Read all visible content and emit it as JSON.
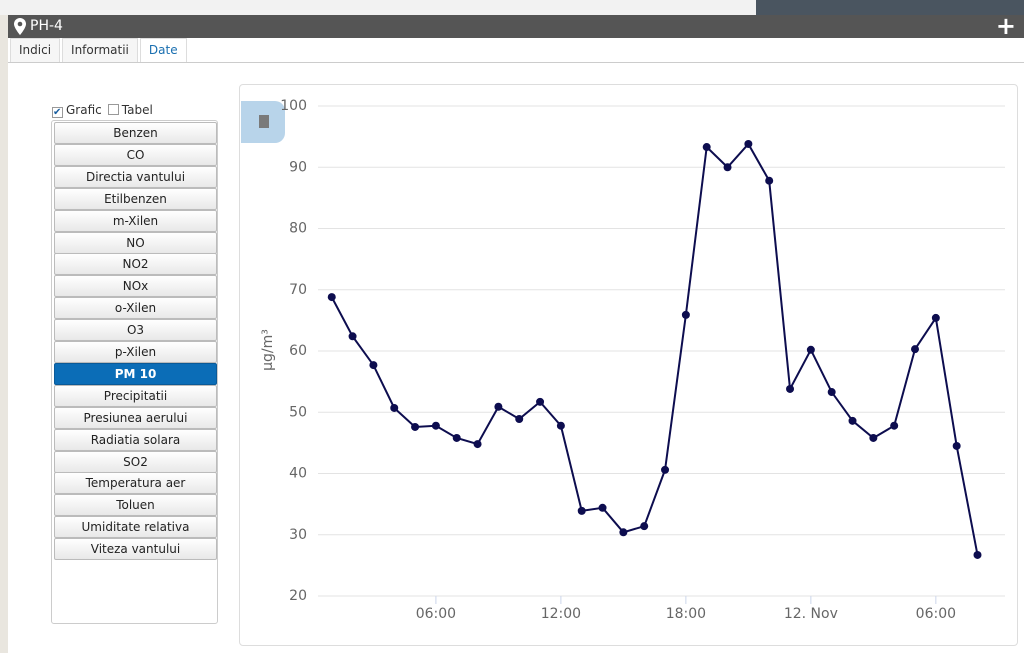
{
  "window": {
    "title": "PH-4"
  },
  "tabs": [
    {
      "label": "Indici"
    },
    {
      "label": "Informatii"
    },
    {
      "label": "Date",
      "active": true
    }
  ],
  "view_options": [
    {
      "label": "Grafic",
      "checked": true
    },
    {
      "label": "Tabel",
      "checked": false
    }
  ],
  "buttons": [
    {
      "label": "Benzen"
    },
    {
      "label": "CO"
    },
    {
      "label": "Directia vantului"
    },
    {
      "label": "Etilbenzen"
    },
    {
      "label": "m-Xilen"
    },
    {
      "label": "NO"
    },
    {
      "label": "NO2"
    },
    {
      "label": "NOx"
    },
    {
      "label": "o-Xilen"
    },
    {
      "label": "O3"
    },
    {
      "label": "p-Xilen"
    },
    {
      "label": "PM 10",
      "selected": true
    },
    {
      "label": "Precipitatii"
    },
    {
      "label": "Presiunea aerului"
    },
    {
      "label": "Radiatia solara"
    },
    {
      "label": "SO2"
    },
    {
      "label": "Temperatura aer"
    },
    {
      "label": "Toluen"
    },
    {
      "label": "Umiditate relativa"
    },
    {
      "label": "Viteza vantului"
    }
  ],
  "chart_data": {
    "type": "line",
    "y_label": "µg/m³",
    "color": "#0d0d4f",
    "grid": true,
    "x": [
      1,
      2,
      3,
      4,
      5,
      6,
      7,
      8,
      9,
      10,
      11,
      12,
      13,
      14,
      15,
      16,
      17,
      18,
      19,
      20,
      21,
      22,
      23,
      24,
      25,
      26,
      27,
      28,
      29,
      30,
      31,
      32
    ],
    "values": [
      68.8,
      62.4,
      57.7,
      50.7,
      47.6,
      47.8,
      45.8,
      44.8,
      50.9,
      48.9,
      51.7,
      47.8,
      33.9,
      34.4,
      30.4,
      31.4,
      40.6,
      65.9,
      93.3,
      90.0,
      93.8,
      87.8,
      53.8,
      60.2,
      53.3,
      48.6,
      45.8,
      47.8,
      60.3,
      65.4,
      44.5,
      26.7
    ],
    "xlim": [
      0.34,
      33.32
    ],
    "xticks": [
      {
        "value": 6,
        "label": "06:00"
      },
      {
        "value": 12,
        "label": "12:00"
      },
      {
        "value": 18,
        "label": "18:00"
      },
      {
        "value": 24,
        "label": "12. Nov"
      },
      {
        "value": 30,
        "label": "06:00"
      }
    ],
    "ylim": [
      20,
      100
    ],
    "yticks": [
      20,
      30,
      40,
      50,
      60,
      70,
      80,
      90,
      100
    ]
  }
}
